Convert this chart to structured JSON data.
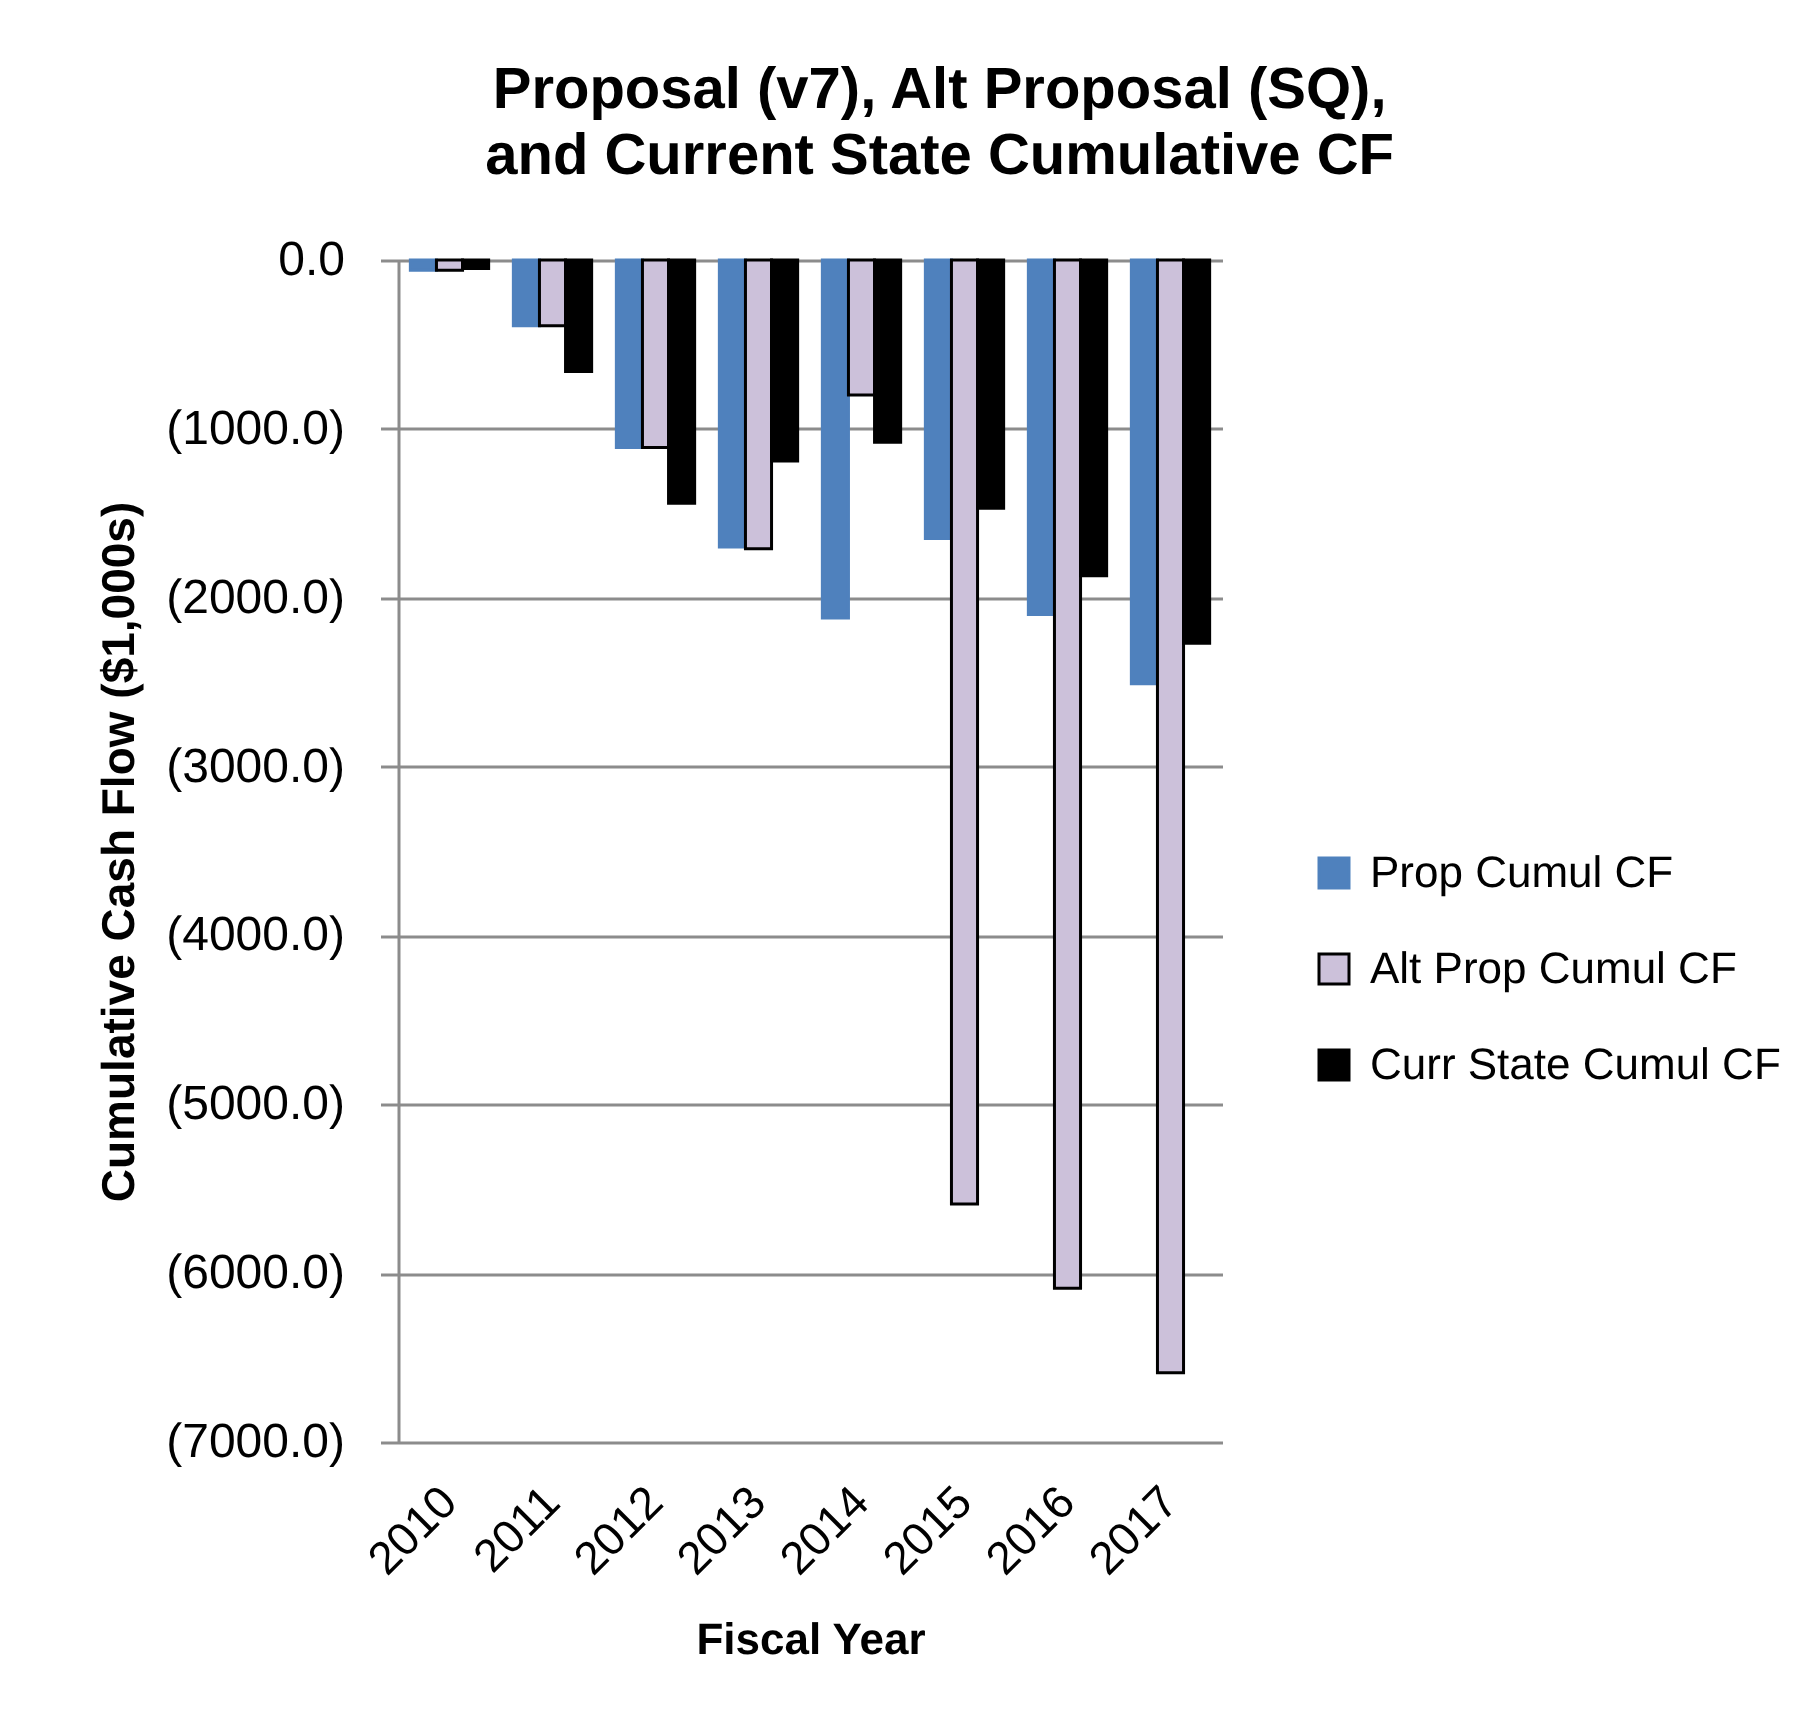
{
  "chart_data": {
    "type": "bar",
    "title": "Proposal (v7), Alt Proposal (SQ), and Current State Cumulative CF",
    "xlabel": "Fiscal Year",
    "ylabel": "Cumulative Cash Flow ($1,000s)",
    "categories": [
      "2010",
      "2011",
      "2012",
      "2013",
      "2014",
      "2015",
      "2016",
      "2017"
    ],
    "series": [
      {
        "name": "Prop Cumul CF",
        "color": "#4f81bd",
        "values": [
          -60,
          -390,
          -1110,
          -1700,
          -2120,
          -1650,
          -2100,
          -2510
        ]
      },
      {
        "name": "Alt Prop Cumul CF",
        "color": "#ccc1da",
        "values": [
          -60,
          -390,
          -1110,
          -1710,
          -800,
          -5590,
          -6090,
          -6590
        ]
      },
      {
        "name": "Curr State Cumul CF",
        "color": "#000000",
        "values": [
          -50,
          -660,
          -1440,
          -1190,
          -1080,
          -1470,
          -1870,
          -2270
        ]
      }
    ],
    "ylim": [
      -7000,
      0
    ],
    "yticks": [
      {
        "value": -7000,
        "label": "(7000.0)"
      },
      {
        "value": -6000,
        "label": "(6000.0)"
      },
      {
        "value": -5000,
        "label": "(5000.0)"
      },
      {
        "value": -4000,
        "label": "(4000.0)"
      },
      {
        "value": -3000,
        "label": "(3000.0)"
      },
      {
        "value": -2000,
        "label": "(2000.0)"
      },
      {
        "value": -1000,
        "label": "(1000.0)"
      },
      {
        "value": 0,
        "label": "0.0"
      }
    ],
    "grid": "y",
    "legend": "right"
  }
}
